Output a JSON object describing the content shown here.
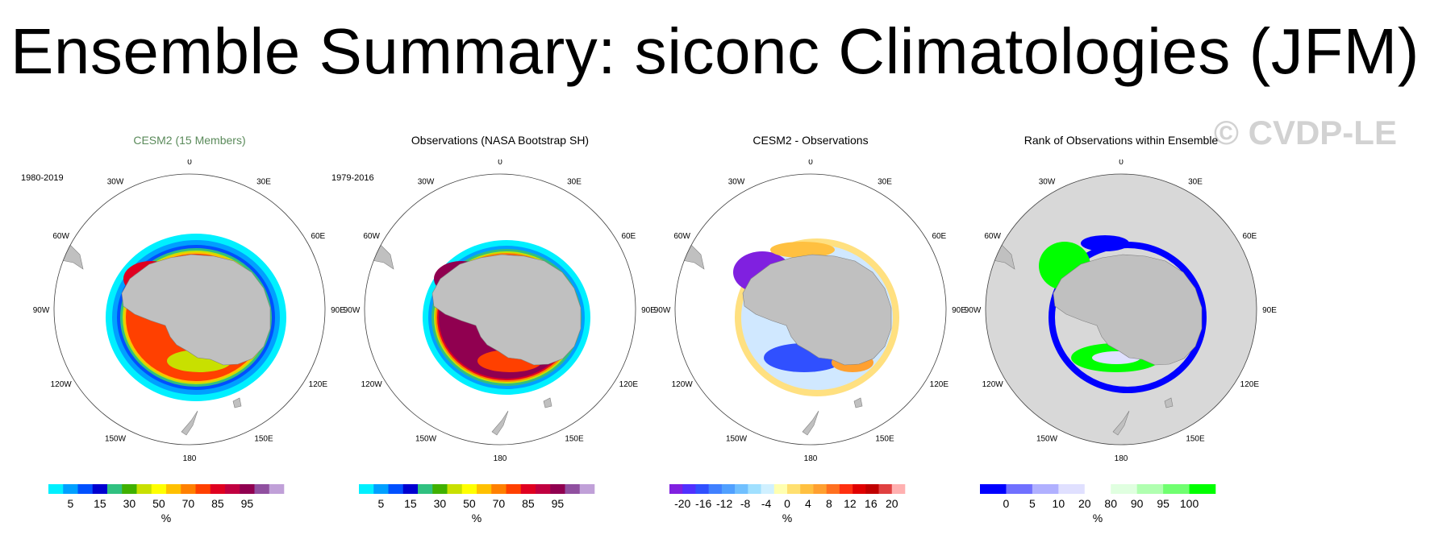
{
  "title": "Ensemble Summary: siconc Climatologies (JFM)",
  "watermark": "© CVDP-LE",
  "lon_labels": [
    "0",
    "30E",
    "60E",
    "90E",
    "120E",
    "150E",
    "180",
    "150W",
    "120W",
    "90W",
    "60W",
    "30W"
  ],
  "panels": [
    {
      "title": "CESM2 (15 Members)",
      "title_color": "#5a8a5a",
      "period": "1980-2019",
      "unit": "%",
      "labels": [
        "5",
        "15",
        "30",
        "50",
        "70",
        "85",
        "95"
      ],
      "colors": [
        "#00f0ff",
        "#00a0ff",
        "#0050ff",
        "#0000d0",
        "#30c080",
        "#40b000",
        "#c8e000",
        "#ffff00",
        "#ffc000",
        "#ff8000",
        "#ff4000",
        "#e00020",
        "#c00040",
        "#900050",
        "#9050a0",
        "#c0a0d8"
      ],
      "background": "#ffffff",
      "style": "ice"
    },
    {
      "title": "Observations (NASA Bootstrap SH)",
      "title_color": "#000000",
      "period": "1979-2016",
      "unit": "%",
      "labels": [
        "5",
        "15",
        "30",
        "50",
        "70",
        "85",
        "95"
      ],
      "colors": [
        "#00f0ff",
        "#00a0ff",
        "#0050ff",
        "#0000d0",
        "#30c080",
        "#40b000",
        "#c8e000",
        "#ffff00",
        "#ffc000",
        "#ff8000",
        "#ff4000",
        "#e00020",
        "#c00040",
        "#900050",
        "#9050a0",
        "#c0a0d8"
      ],
      "background": "#ffffff",
      "style": "obs"
    },
    {
      "title": "CESM2 - Observations",
      "title_color": "#000000",
      "period": "",
      "unit": "%",
      "labels": [
        "-20",
        "-16",
        "-12",
        "-8",
        "-4",
        "0",
        "4",
        "8",
        "12",
        "16",
        "20"
      ],
      "colors": [
        "#8020e0",
        "#5030ff",
        "#3050ff",
        "#4080ff",
        "#50a0ff",
        "#70c0ff",
        "#a0e0ff",
        "#d0f0ff",
        "#ffffb0",
        "#ffe070",
        "#ffc040",
        "#ffa030",
        "#ff7020",
        "#ff3010",
        "#e00000",
        "#c00000",
        "#e04040",
        "#ffb0b0"
      ],
      "background": "#ffffff",
      "style": "diff"
    },
    {
      "title": "Rank of Observations within Ensemble",
      "title_color": "#000000",
      "period": "",
      "unit": "%",
      "labels": [
        "0",
        "5",
        "10",
        "20",
        "80",
        "90",
        "95",
        "100"
      ],
      "colors": [
        "#0000ff",
        "#7070ff",
        "#b0b0ff",
        "#e0e0ff",
        "#ffffff",
        "#e0ffe0",
        "#b0ffb0",
        "#70ff70",
        "#00ff00"
      ],
      "background": "#d8d8d8",
      "style": "rank"
    }
  ]
}
